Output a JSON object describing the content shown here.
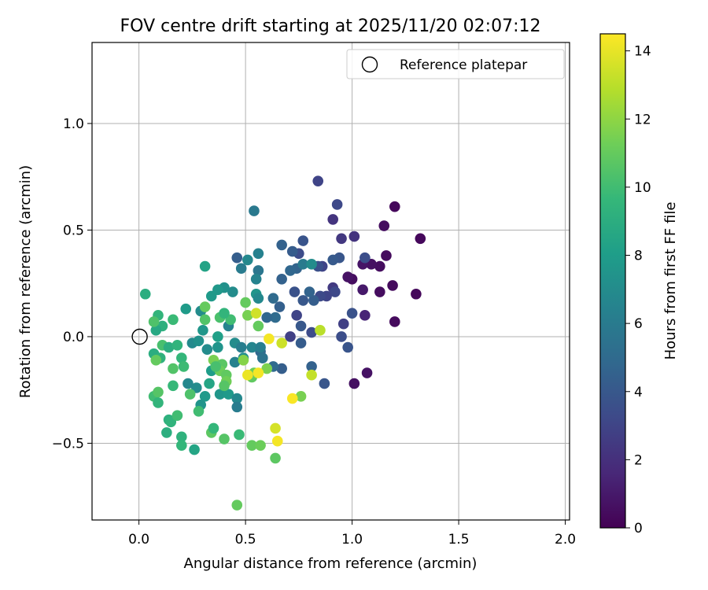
{
  "chart_data": {
    "type": "scatter",
    "title": "FOV centre drift starting at 2025/11/20 02:07:12",
    "xlabel": "Angular distance from reference (arcmin)",
    "ylabel": "Rotation from reference (arcmin)",
    "xlim": [
      -0.22,
      2.02
    ],
    "ylim": [
      -0.86,
      1.38
    ],
    "xticks": [
      0.0,
      0.5,
      1.0,
      1.5,
      2.0
    ],
    "xtick_labels": [
      "0.0",
      "0.5",
      "1.0",
      "1.5",
      "2.0"
    ],
    "yticks": [
      -0.5,
      0.0,
      0.5,
      1.0
    ],
    "ytick_labels": [
      "−0.5",
      "0.0",
      "0.5",
      "1.0"
    ],
    "grid": true,
    "legend": {
      "position": "top-right",
      "entries": [
        "Reference platepar"
      ]
    },
    "reference_point": {
      "x": 0.0,
      "y": 0.0,
      "label": "Reference platepar"
    },
    "colorbar": {
      "label": "Hours from first FF file",
      "min": 0,
      "max": 14.5,
      "ticks": [
        0,
        2,
        4,
        6,
        8,
        10,
        12,
        14
      ],
      "tick_labels": [
        "0",
        "2",
        "4",
        "6",
        "8",
        "10",
        "12",
        "14"
      ],
      "colormap_stops": [
        "#440154",
        "#482878",
        "#3e4989",
        "#31688e",
        "#26828e",
        "#1f9e89",
        "#35b779",
        "#6ece58",
        "#b5de2b",
        "#fde725"
      ]
    },
    "points": [
      {
        "x": 1.2,
        "y": 0.61,
        "h": 0.3
      },
      {
        "x": 1.32,
        "y": 0.46,
        "h": 0.3
      },
      {
        "x": 1.15,
        "y": 0.52,
        "h": 0.5
      },
      {
        "x": 1.16,
        "y": 0.38,
        "h": 0.4
      },
      {
        "x": 1.13,
        "y": 0.33,
        "h": 0.5
      },
      {
        "x": 1.09,
        "y": 0.34,
        "h": 0.6
      },
      {
        "x": 1.05,
        "y": 0.34,
        "h": 0.8
      },
      {
        "x": 1.0,
        "y": 0.27,
        "h": 0.5
      },
      {
        "x": 0.98,
        "y": 0.28,
        "h": 0.7
      },
      {
        "x": 1.19,
        "y": 0.24,
        "h": 0.4
      },
      {
        "x": 1.3,
        "y": 0.2,
        "h": 0.3
      },
      {
        "x": 1.13,
        "y": 0.21,
        "h": 0.5
      },
      {
        "x": 1.05,
        "y": 0.22,
        "h": 1.0
      },
      {
        "x": 1.2,
        "y": 0.07,
        "h": 0.4
      },
      {
        "x": 1.06,
        "y": 0.1,
        "h": 1.5
      },
      {
        "x": 1.01,
        "y": -0.22,
        "h": 0.6
      },
      {
        "x": 1.07,
        "y": -0.17,
        "h": 0.7
      },
      {
        "x": 0.84,
        "y": 0.73,
        "h": 3.0
      },
      {
        "x": 0.93,
        "y": 0.62,
        "h": 3.2
      },
      {
        "x": 0.91,
        "y": 0.55,
        "h": 2.2
      },
      {
        "x": 0.95,
        "y": 0.46,
        "h": 2.4
      },
      {
        "x": 1.01,
        "y": 0.47,
        "h": 2.2
      },
      {
        "x": 0.77,
        "y": 0.45,
        "h": 3.8
      },
      {
        "x": 1.06,
        "y": 0.37,
        "h": 3.5
      },
      {
        "x": 0.94,
        "y": 0.37,
        "h": 3.9
      },
      {
        "x": 0.91,
        "y": 0.36,
        "h": 4.1
      },
      {
        "x": 0.86,
        "y": 0.33,
        "h": 3.0
      },
      {
        "x": 0.84,
        "y": 0.33,
        "h": 3.6
      },
      {
        "x": 0.75,
        "y": 0.39,
        "h": 3.4
      },
      {
        "x": 0.72,
        "y": 0.4,
        "h": 4.2
      },
      {
        "x": 0.67,
        "y": 0.43,
        "h": 4.5
      },
      {
        "x": 0.74,
        "y": 0.32,
        "h": 4.6
      },
      {
        "x": 0.71,
        "y": 0.31,
        "h": 4.8
      },
      {
        "x": 0.67,
        "y": 0.27,
        "h": 4.5
      },
      {
        "x": 0.91,
        "y": 0.23,
        "h": 2.5
      },
      {
        "x": 0.92,
        "y": 0.21,
        "h": 3.2
      },
      {
        "x": 0.88,
        "y": 0.19,
        "h": 3.0
      },
      {
        "x": 0.85,
        "y": 0.19,
        "h": 3.3
      },
      {
        "x": 0.82,
        "y": 0.17,
        "h": 4.3
      },
      {
        "x": 0.8,
        "y": 0.21,
        "h": 4.6
      },
      {
        "x": 0.73,
        "y": 0.21,
        "h": 3.7
      },
      {
        "x": 0.63,
        "y": 0.18,
        "h": 5.0
      },
      {
        "x": 0.77,
        "y": 0.17,
        "h": 4.0
      },
      {
        "x": 1.0,
        "y": 0.11,
        "h": 3.7
      },
      {
        "x": 0.96,
        "y": 0.06,
        "h": 2.8
      },
      {
        "x": 0.74,
        "y": 0.1,
        "h": 3.0
      },
      {
        "x": 0.66,
        "y": 0.14,
        "h": 4.4
      },
      {
        "x": 0.64,
        "y": 0.09,
        "h": 5.0
      },
      {
        "x": 0.6,
        "y": 0.09,
        "h": 4.8
      },
      {
        "x": 0.76,
        "y": 0.05,
        "h": 4.0
      },
      {
        "x": 0.81,
        "y": 0.02,
        "h": 3.4
      },
      {
        "x": 0.71,
        "y": 0.0,
        "h": 2.8
      },
      {
        "x": 0.95,
        "y": 0.0,
        "h": 3.5
      },
      {
        "x": 0.98,
        "y": -0.05,
        "h": 3.8
      },
      {
        "x": 0.76,
        "y": -0.03,
        "h": 4.2
      },
      {
        "x": 0.67,
        "y": -0.15,
        "h": 4.3
      },
      {
        "x": 0.81,
        "y": -0.14,
        "h": 4.5
      },
      {
        "x": 0.87,
        "y": -0.22,
        "h": 3.9
      },
      {
        "x": 0.63,
        "y": -0.14,
        "h": 5.0
      },
      {
        "x": 0.58,
        "y": -0.1,
        "h": 5.2
      },
      {
        "x": 0.57,
        "y": -0.07,
        "h": 4.9
      },
      {
        "x": 0.54,
        "y": 0.59,
        "h": 5.9
      },
      {
        "x": 0.46,
        "y": 0.37,
        "h": 4.3
      },
      {
        "x": 0.51,
        "y": 0.36,
        "h": 6.8
      },
      {
        "x": 0.56,
        "y": 0.39,
        "h": 6.4
      },
      {
        "x": 0.48,
        "y": 0.32,
        "h": 6.0
      },
      {
        "x": 0.56,
        "y": 0.31,
        "h": 5.7
      },
      {
        "x": 0.55,
        "y": 0.27,
        "h": 6.5
      },
      {
        "x": 0.77,
        "y": 0.34,
        "h": 6.0
      },
      {
        "x": 0.81,
        "y": 0.34,
        "h": 7.0
      },
      {
        "x": 0.55,
        "y": 0.2,
        "h": 7.5
      },
      {
        "x": 0.56,
        "y": 0.18,
        "h": 6.8
      },
      {
        "x": 0.44,
        "y": 0.21,
        "h": 7.0
      },
      {
        "x": 0.4,
        "y": 0.23,
        "h": 7.3
      },
      {
        "x": 0.37,
        "y": 0.22,
        "h": 7.7
      },
      {
        "x": 0.34,
        "y": 0.19,
        "h": 7.8
      },
      {
        "x": 0.31,
        "y": 0.33,
        "h": 8.4
      },
      {
        "x": 0.42,
        "y": 0.05,
        "h": 6.5
      },
      {
        "x": 0.45,
        "y": -0.03,
        "h": 7.0
      },
      {
        "x": 0.48,
        "y": -0.05,
        "h": 6.2
      },
      {
        "x": 0.53,
        "y": -0.05,
        "h": 6.6
      },
      {
        "x": 0.57,
        "y": -0.05,
        "h": 6.2
      },
      {
        "x": 0.58,
        "y": -0.1,
        "h": 5.5
      },
      {
        "x": 0.49,
        "y": -0.1,
        "h": 7.2
      },
      {
        "x": 0.45,
        "y": -0.12,
        "h": 6.4
      },
      {
        "x": 0.37,
        "y": -0.05,
        "h": 7.5
      },
      {
        "x": 0.32,
        "y": -0.06,
        "h": 7.0
      },
      {
        "x": 0.34,
        "y": -0.16,
        "h": 8.0
      },
      {
        "x": 0.33,
        "y": -0.22,
        "h": 8.5
      },
      {
        "x": 0.31,
        "y": -0.28,
        "h": 7.8
      },
      {
        "x": 0.29,
        "y": -0.32,
        "h": 7.5
      },
      {
        "x": 0.27,
        "y": -0.24,
        "h": 7.0
      },
      {
        "x": 0.23,
        "y": -0.22,
        "h": 6.8
      },
      {
        "x": 0.38,
        "y": -0.27,
        "h": 7.6
      },
      {
        "x": 0.42,
        "y": -0.27,
        "h": 7.8
      },
      {
        "x": 0.46,
        "y": -0.29,
        "h": 6.8
      },
      {
        "x": 0.46,
        "y": -0.33,
        "h": 6.1
      },
      {
        "x": 0.25,
        "y": -0.03,
        "h": 6.9
      },
      {
        "x": 0.28,
        "y": -0.02,
        "h": 7.3
      },
      {
        "x": 0.37,
        "y": 0.0,
        "h": 8.2
      },
      {
        "x": 0.3,
        "y": 0.03,
        "h": 7.6
      },
      {
        "x": 0.29,
        "y": 0.12,
        "h": 7.0
      },
      {
        "x": 0.22,
        "y": 0.13,
        "h": 7.9
      },
      {
        "x": 0.26,
        "y": -0.53,
        "h": 8.5
      },
      {
        "x": 0.03,
        "y": 0.2,
        "h": 9.0
      },
      {
        "x": 0.09,
        "y": 0.1,
        "h": 9.5
      },
      {
        "x": 0.11,
        "y": 0.05,
        "h": 9.2
      },
      {
        "x": 0.08,
        "y": 0.03,
        "h": 8.7
      },
      {
        "x": 0.16,
        "y": 0.08,
        "h": 9.8
      },
      {
        "x": 0.07,
        "y": 0.07,
        "h": 10.4
      },
      {
        "x": 0.11,
        "y": -0.04,
        "h": 10.2
      },
      {
        "x": 0.14,
        "y": -0.05,
        "h": 9.0
      },
      {
        "x": 0.18,
        "y": -0.04,
        "h": 9.4
      },
      {
        "x": 0.07,
        "y": -0.08,
        "h": 9.0
      },
      {
        "x": 0.1,
        "y": -0.1,
        "h": 9.3
      },
      {
        "x": 0.08,
        "y": -0.11,
        "h": 11.0
      },
      {
        "x": 0.2,
        "y": -0.1,
        "h": 9.6
      },
      {
        "x": 0.21,
        "y": -0.14,
        "h": 9.9
      },
      {
        "x": 0.16,
        "y": -0.15,
        "h": 10.5
      },
      {
        "x": 0.16,
        "y": -0.23,
        "h": 9.7
      },
      {
        "x": 0.07,
        "y": -0.28,
        "h": 10.0
      },
      {
        "x": 0.09,
        "y": -0.26,
        "h": 10.6
      },
      {
        "x": 0.09,
        "y": -0.31,
        "h": 9.5
      },
      {
        "x": 0.14,
        "y": -0.39,
        "h": 9.2
      },
      {
        "x": 0.15,
        "y": -0.4,
        "h": 9.4
      },
      {
        "x": 0.18,
        "y": -0.37,
        "h": 10.0
      },
      {
        "x": 0.13,
        "y": -0.45,
        "h": 9.1
      },
      {
        "x": 0.2,
        "y": -0.47,
        "h": 9.3
      },
      {
        "x": 0.2,
        "y": -0.51,
        "h": 9.6
      },
      {
        "x": 0.24,
        "y": -0.27,
        "h": 10.4
      },
      {
        "x": 0.28,
        "y": -0.35,
        "h": 10.0
      },
      {
        "x": 0.34,
        "y": -0.45,
        "h": 10.8
      },
      {
        "x": 0.35,
        "y": -0.43,
        "h": 9.6
      },
      {
        "x": 0.4,
        "y": -0.48,
        "h": 10.6
      },
      {
        "x": 0.47,
        "y": -0.46,
        "h": 9.8
      },
      {
        "x": 0.31,
        "y": 0.08,
        "h": 10.5
      },
      {
        "x": 0.38,
        "y": 0.09,
        "h": 10.3
      },
      {
        "x": 0.43,
        "y": 0.08,
        "h": 10.0
      },
      {
        "x": 0.4,
        "y": 0.11,
        "h": 9.5
      },
      {
        "x": 0.31,
        "y": 0.14,
        "h": 11.0
      },
      {
        "x": 0.5,
        "y": 0.16,
        "h": 11.0
      },
      {
        "x": 0.51,
        "y": 0.1,
        "h": 11.5
      },
      {
        "x": 0.56,
        "y": 0.05,
        "h": 11.0
      },
      {
        "x": 0.35,
        "y": -0.11,
        "h": 11.5
      },
      {
        "x": 0.39,
        "y": -0.13,
        "h": 10.7
      },
      {
        "x": 0.38,
        "y": -0.16,
        "h": 11.2
      },
      {
        "x": 0.36,
        "y": -0.14,
        "h": 10.2
      },
      {
        "x": 0.41,
        "y": -0.18,
        "h": 10.9
      },
      {
        "x": 0.41,
        "y": -0.21,
        "h": 11.3
      },
      {
        "x": 0.4,
        "y": -0.23,
        "h": 10.6
      },
      {
        "x": 0.49,
        "y": -0.11,
        "h": 11.8
      },
      {
        "x": 0.53,
        "y": -0.19,
        "h": 10.9
      },
      {
        "x": 0.54,
        "y": -0.17,
        "h": 11.2
      },
      {
        "x": 0.6,
        "y": -0.15,
        "h": 11.6
      },
      {
        "x": 0.53,
        "y": -0.51,
        "h": 11.0
      },
      {
        "x": 0.57,
        "y": -0.51,
        "h": 11.2
      },
      {
        "x": 0.64,
        "y": -0.57,
        "h": 10.8
      },
      {
        "x": 0.46,
        "y": -0.79,
        "h": 11.0
      },
      {
        "x": 0.76,
        "y": -0.28,
        "h": 11.5
      },
      {
        "x": 0.55,
        "y": 0.11,
        "h": 13.5
      },
      {
        "x": 0.61,
        "y": -0.01,
        "h": 14.3
      },
      {
        "x": 0.67,
        "y": -0.03,
        "h": 13.4
      },
      {
        "x": 0.51,
        "y": -0.18,
        "h": 14.1
      },
      {
        "x": 0.56,
        "y": -0.17,
        "h": 14.3
      },
      {
        "x": 0.72,
        "y": -0.29,
        "h": 14.4
      },
      {
        "x": 0.64,
        "y": -0.43,
        "h": 13.6
      },
      {
        "x": 0.65,
        "y": -0.49,
        "h": 14.3
      },
      {
        "x": 0.81,
        "y": -0.18,
        "h": 13.2
      },
      {
        "x": 0.85,
        "y": 0.03,
        "h": 13.0
      }
    ]
  }
}
